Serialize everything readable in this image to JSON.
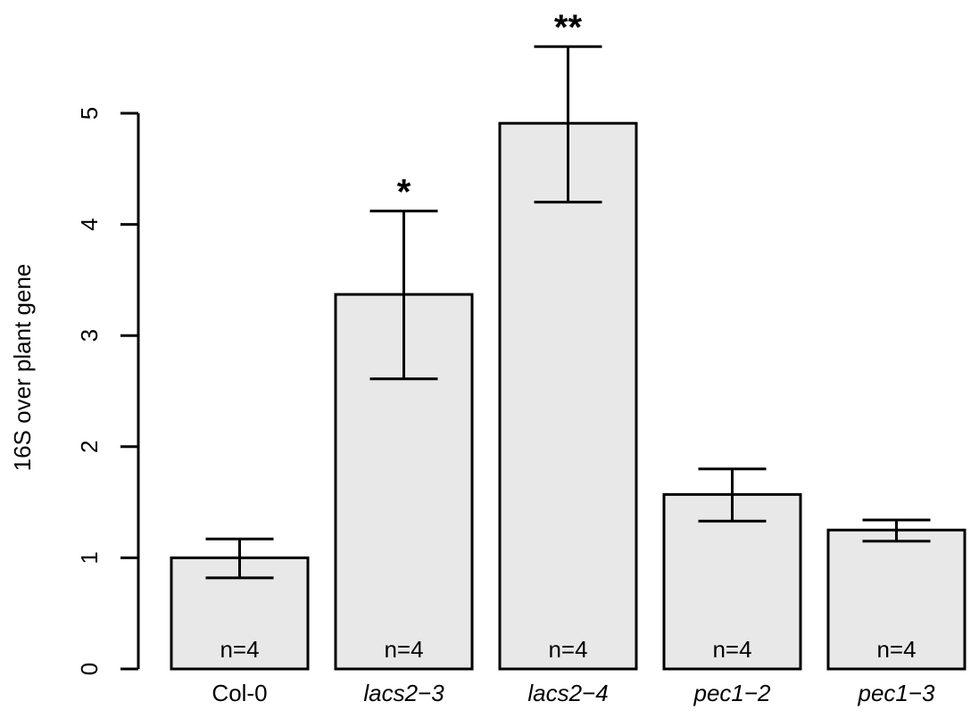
{
  "chart_data": {
    "type": "bar",
    "title": "",
    "xlabel": "",
    "ylabel": "16S over plant gene",
    "ylim": [
      0,
      5
    ],
    "yticks": [
      0,
      1,
      2,
      3,
      4,
      5
    ],
    "ytick_labels": [
      "0",
      "1",
      "2",
      "3",
      "4",
      "5"
    ],
    "categories": [
      "Col-0",
      "lacs2−3",
      "lacs2−4",
      "pec1−2",
      "pec1−3"
    ],
    "category_italic": [
      false,
      true,
      true,
      true,
      true
    ],
    "values": [
      1.0,
      3.37,
      4.91,
      1.57,
      1.25
    ],
    "error_upper": [
      1.17,
      4.12,
      5.6,
      1.8,
      1.34
    ],
    "error_lower": [
      0.82,
      2.61,
      4.2,
      1.33,
      1.15
    ],
    "bar_labels": [
      "n=4",
      "n=4",
      "n=4",
      "n=4",
      "n=4"
    ],
    "significance": [
      "",
      "*",
      "**",
      "",
      ""
    ],
    "colors": {
      "bar_fill": "#e8e8e8",
      "stroke": "#000000"
    },
    "grid": false,
    "legend": "none"
  }
}
